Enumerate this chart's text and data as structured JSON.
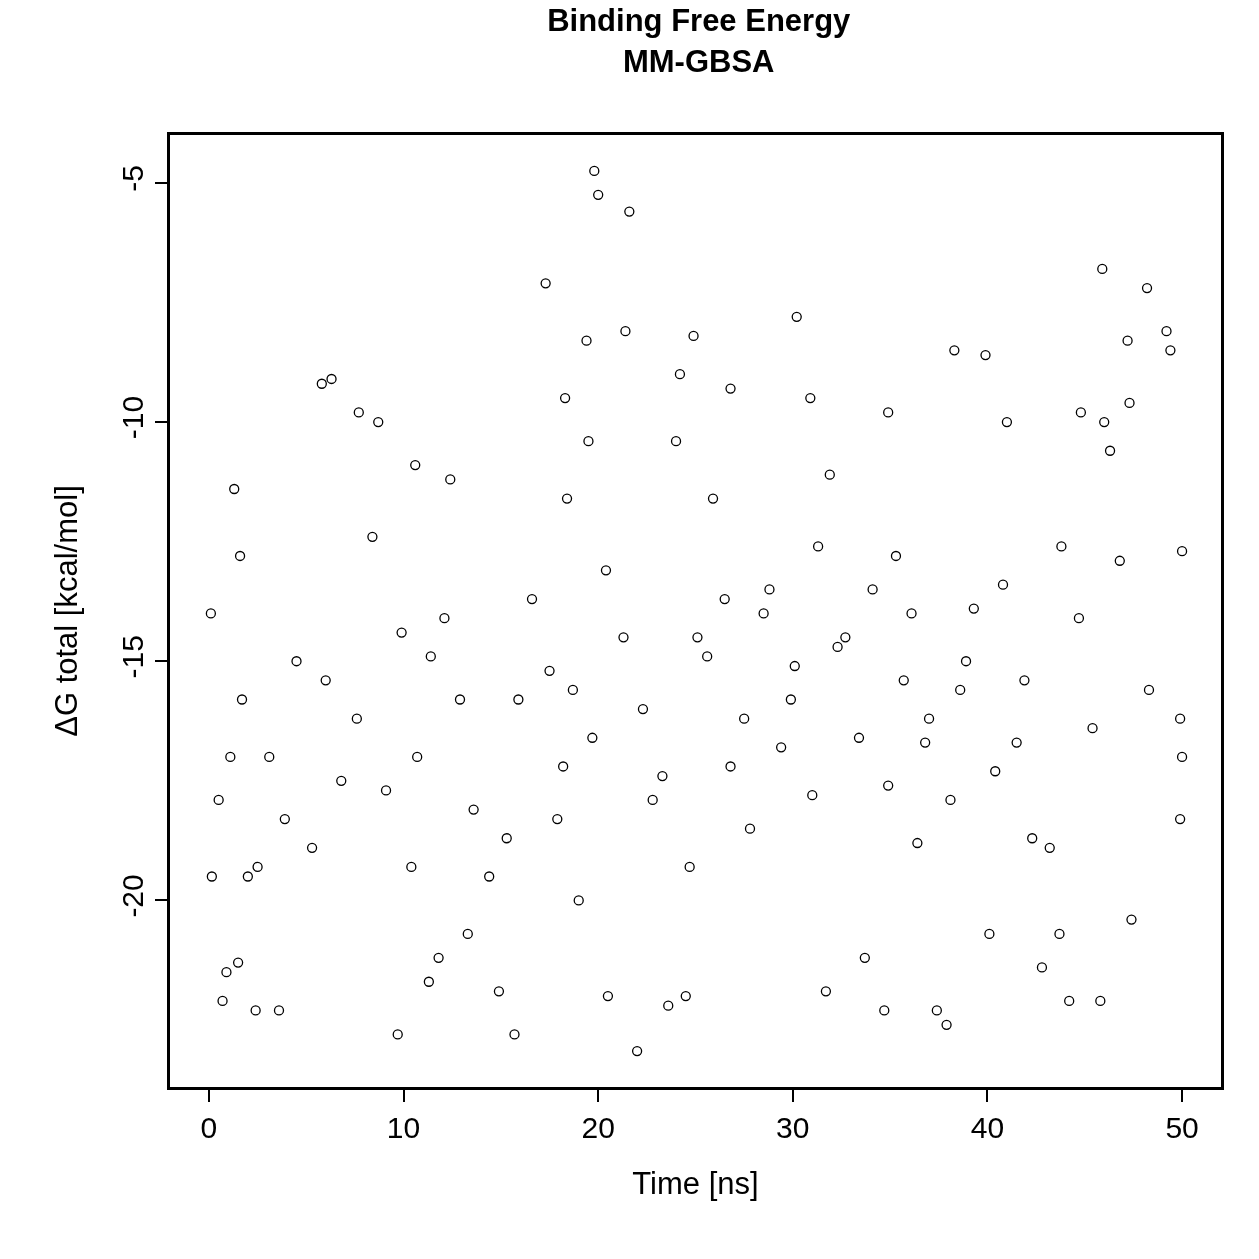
{
  "chart_data": {
    "type": "scatter",
    "title": "Binding Free Energy\nMM-GBSA",
    "xlabel": "Time [ns]",
    "ylabel": "ΔG total [kcal/mol]",
    "xlim": [
      -2,
      52
    ],
    "xticks": [
      0,
      10,
      20,
      30,
      40,
      50
    ],
    "ylim": [
      -23.9,
      -4.0
    ],
    "yticks": [
      -20,
      -15,
      -10,
      -5
    ],
    "grid": false,
    "marker": "circle",
    "series": [
      {
        "color": "#000000",
        "x": [
          0.1,
          0.15,
          0.7,
          0.9,
          1.5,
          1.3,
          1.6,
          2.4,
          3.6,
          2.0,
          5.8,
          6.3,
          7.7,
          8.7,
          9.7,
          10.6,
          12.4,
          11.3,
          11.8,
          10.4,
          13.3,
          14.9,
          15.7,
          17.3,
          19.4,
          19.8,
          20.0,
          21.6,
          21.4,
          22.0,
          20.5,
          23.6,
          24.5,
          24.9,
          24.2,
          26.8,
          30.2,
          30.9,
          31.7,
          33.7,
          34.7,
          34.9,
          36.4,
          37.9,
          38.3,
          39.9,
          40.1,
          41.0,
          42.8,
          44.2,
          45.8,
          45.9,
          48.2,
          49.2,
          49.4,
          50.0,
          49.9,
          50.0,
          49.9,
          47.2,
          47.3,
          44.8,
          46.0,
          46.3,
          43.8,
          43.7,
          42.3,
          41.5,
          40.8,
          38.9,
          37.4,
          38.6,
          36.8,
          35.7,
          35.3,
          34.1,
          32.7,
          31.9,
          31.3,
          30.1,
          29.4,
          28.5,
          27.5,
          26.5,
          25.6,
          24.7,
          23.3,
          22.3,
          21.3,
          20.4,
          19.7,
          18.7,
          18.2,
          17.5,
          16.6,
          15.9,
          15.3,
          14.4,
          13.6,
          12.9,
          12.1,
          11.4,
          10.7,
          9.9,
          9.1,
          8.4,
          7.6,
          6.8,
          6.0,
          5.3,
          4.5,
          3.9,
          3.1,
          2.5,
          1.7,
          1.1,
          0.5,
          48.3,
          47.4,
          46.8,
          45.4,
          44.7,
          43.2,
          41.9,
          40.4,
          39.3,
          38.1,
          37.0,
          36.1,
          34.9,
          33.4,
          32.3,
          31.0,
          29.9,
          28.8,
          27.8,
          26.8,
          25.9,
          25.1,
          24.0,
          22.8,
          19.5,
          18.4,
          18.3,
          17.9,
          19.0
        ],
        "values": [
          -14.0,
          -19.5,
          -22.1,
          -21.5,
          -21.3,
          -11.4,
          -12.8,
          -22.3,
          -22.3,
          -19.5,
          -9.2,
          -9.1,
          -9.8,
          -10.0,
          -22.8,
          -10.9,
          -11.2,
          -21.7,
          -21.2,
          -19.3,
          -20.7,
          -21.9,
          -22.8,
          -7.1,
          -8.3,
          -4.75,
          -5.25,
          -5.6,
          -8.1,
          -23.15,
          -22.0,
          -22.2,
          -22.0,
          -8.2,
          -9.0,
          -9.3,
          -7.8,
          -9.5,
          -21.9,
          -21.2,
          -22.3,
          -9.8,
          -18.8,
          -22.6,
          -8.5,
          -8.6,
          -20.7,
          -10.0,
          -21.4,
          -22.1,
          -22.1,
          -6.8,
          -7.2,
          -8.1,
          -8.5,
          -17.0,
          -18.3,
          -12.7,
          -16.2,
          -8.3,
          -9.6,
          -9.8,
          -10.0,
          -10.6,
          -12.6,
          -20.7,
          -18.7,
          -16.7,
          -13.4,
          -15.0,
          -22.3,
          -15.6,
          -16.7,
          -15.4,
          -12.8,
          -13.5,
          -14.5,
          -11.1,
          -12.6,
          -15.1,
          -16.8,
          -14.0,
          -16.2,
          -13.7,
          -14.9,
          -19.3,
          -17.4,
          -16.0,
          -14.5,
          -13.1,
          -16.6,
          -15.6,
          -17.2,
          -15.2,
          -13.7,
          -15.8,
          -18.7,
          -19.5,
          -18.1,
          -15.8,
          -14.1,
          -14.9,
          -17.0,
          -14.4,
          -17.7,
          -12.4,
          -16.2,
          -17.5,
          -15.4,
          -18.9,
          -15.0,
          -18.3,
          -17.0,
          -19.3,
          -15.8,
          -17.0,
          -17.9,
          -15.6,
          -20.4,
          -12.9,
          -16.4,
          -14.1,
          -18.9,
          -15.4,
          -17.3,
          -13.9,
          -17.9,
          -16.2,
          -14.0,
          -17.6,
          -16.6,
          -14.7,
          -17.8,
          -15.8,
          -13.5,
          -18.5,
          -17.2,
          -11.6,
          -14.5,
          -10.4,
          -17.9,
          -10.4,
          -11.6,
          -9.5,
          -18.3,
          -20.0
        ]
      }
    ]
  }
}
